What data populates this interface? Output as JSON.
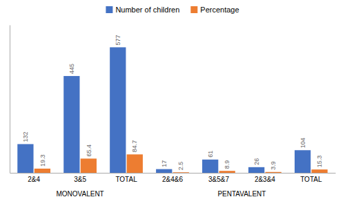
{
  "chart_data": {
    "type": "bar",
    "categories": [
      "2&4",
      "3&5",
      "TOTAL",
      "2&4&6",
      "3&5&7",
      "2&3&4",
      "TOTAL"
    ],
    "series": [
      {
        "name": "Number of children",
        "color": "#4472C4",
        "values": [
          132,
          445,
          577,
          17,
          61,
          26,
          104
        ]
      },
      {
        "name": "Percentage",
        "color": "#ED7D31",
        "values": [
          19.3,
          65.4,
          84.7,
          2.5,
          8.9,
          3.9,
          15.3
        ]
      }
    ],
    "annotations": [
      {
        "text": "MONOVALENT",
        "categories": [
          "2&4",
          "3&5",
          "TOTAL"
        ]
      },
      {
        "text": "PENTAVALENT",
        "categories": [
          "2&4&6",
          "3&5&7",
          "2&3&4",
          "TOTAL"
        ]
      }
    ],
    "ylim": [
      0,
      680
    ],
    "data_labels": true,
    "tick_labels": "x",
    "grid": false,
    "legend": "top"
  }
}
